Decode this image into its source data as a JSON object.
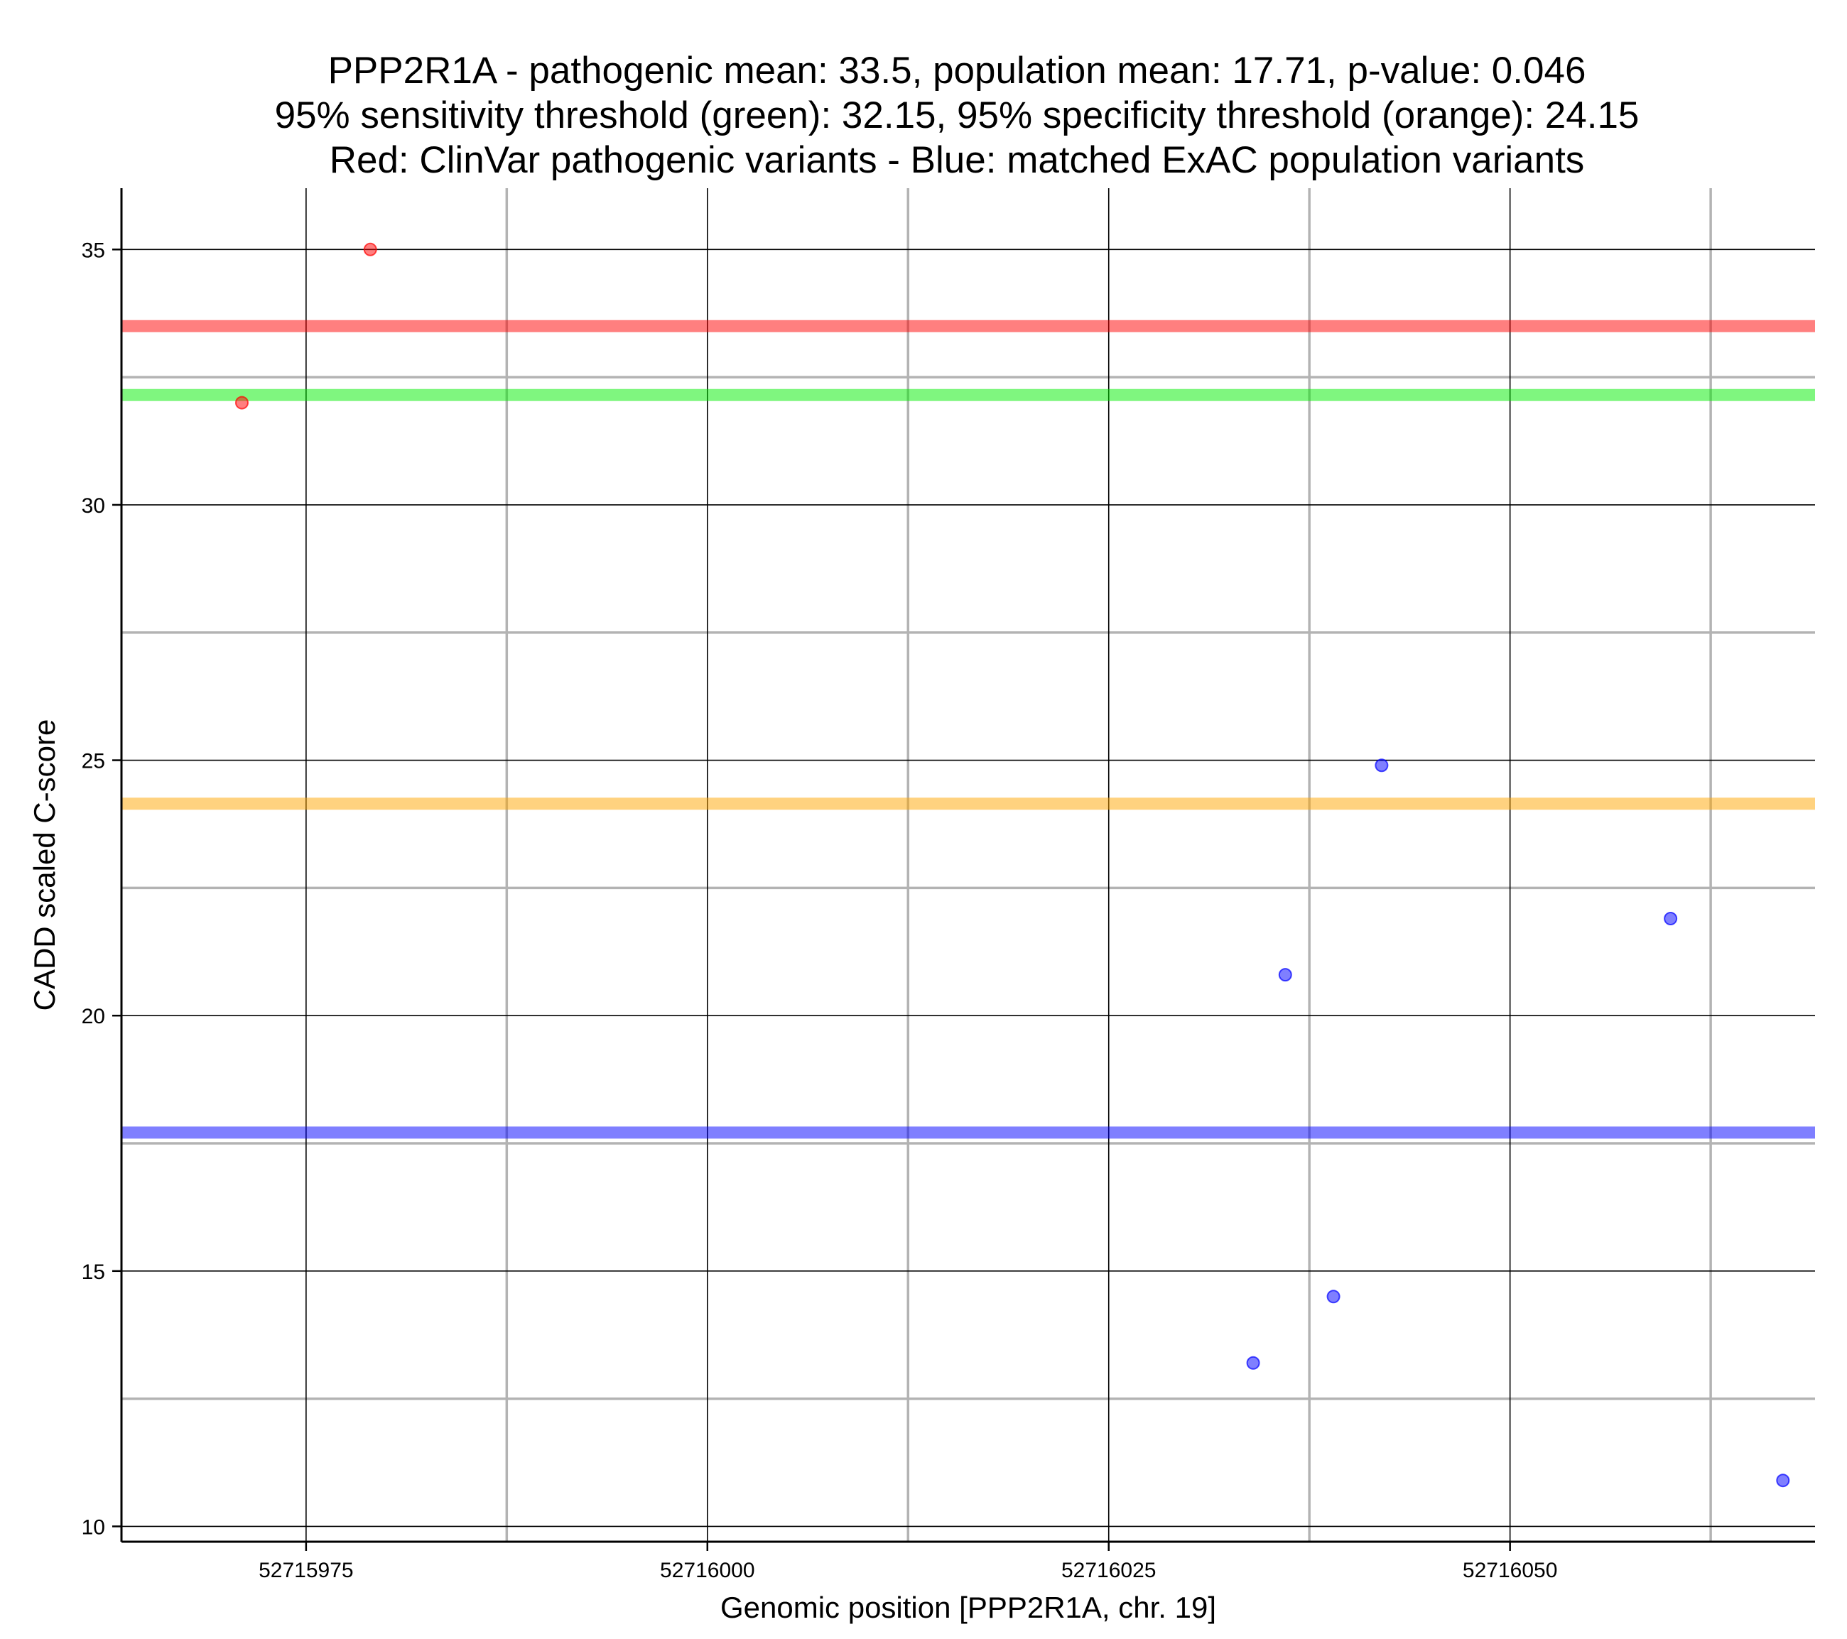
{
  "chart_data": {
    "type": "scatter",
    "title": [
      "PPP2R1A - pathogenic mean: 33.5, population mean: 17.71, p-value: 0.046",
      "95% sensitivity threshold (green): 32.15, 95% specificity threshold (orange): 24.15",
      "Red: ClinVar pathogenic variants - Blue: matched ExAC population variants"
    ],
    "xlabel": "Genomic position [PPP2R1A, chr. 19]",
    "ylabel": "CADD scaled C-score",
    "xlim": [
      52715963.5,
      52716069
    ],
    "ylim": [
      9.7,
      36.2
    ],
    "x_ticks": [
      52715975,
      52716000,
      52716025,
      52716050
    ],
    "x_tick_labels": [
      "52715975",
      "52716000",
      "52716025",
      "52716050"
    ],
    "x_minor_grid": [
      52715987.5,
      52716012.5,
      52716037.5,
      52716062.5
    ],
    "y_ticks": [
      10,
      15,
      20,
      25,
      30,
      35
    ],
    "y_tick_labels": [
      "10",
      "15",
      "20",
      "25",
      "30",
      "35"
    ],
    "y_minor_grid": [
      12.5,
      17.5,
      22.5,
      27.5,
      32.5
    ],
    "grid": true,
    "series": [
      {
        "color": "#ff0000",
        "points": [
          {
            "x": 52715971,
            "y": 32
          },
          {
            "x": 52715979,
            "y": 35
          }
        ]
      },
      {
        "color": "#0000ff",
        "points": [
          {
            "x": 52716034,
            "y": 13.2
          },
          {
            "x": 52716036,
            "y": 20.8
          },
          {
            "x": 52716039,
            "y": 14.5
          },
          {
            "x": 52716042,
            "y": 24.9
          },
          {
            "x": 52716060,
            "y": 21.9
          },
          {
            "x": 52716067,
            "y": 10.9
          }
        ]
      }
    ],
    "reference_lines": [
      {
        "y": 33.5,
        "color": "#ff0000"
      },
      {
        "y": 32.15,
        "color": "#00ee00"
      },
      {
        "y": 24.15,
        "color": "#ffa500"
      },
      {
        "y": 17.71,
        "color": "#0000ff"
      }
    ]
  }
}
